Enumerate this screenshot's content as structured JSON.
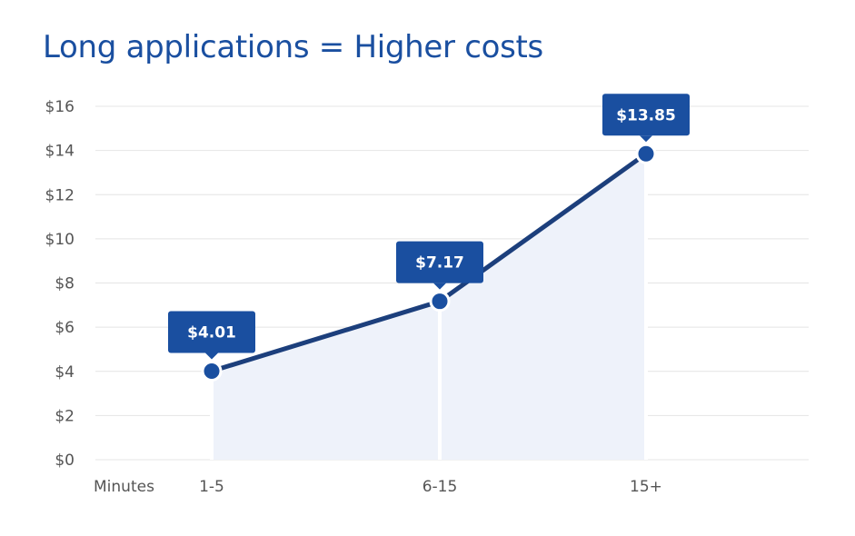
{
  "colors": {
    "title": "#1a4fa0",
    "line": "#1c3f7c",
    "marker": "#1a4fa0",
    "area": "#eef2fa",
    "callout": "#1a4fa0",
    "grid": "#e4e4e4"
  },
  "chart_data": {
    "type": "line",
    "title": "Long applications = Higher costs",
    "xlabel": "Minutes",
    "ylabel": "",
    "categories": [
      "1-5",
      "6-15",
      "15+"
    ],
    "values": [
      4.01,
      7.17,
      13.85
    ],
    "data_labels": [
      "$4.01",
      "$7.17",
      "$13.85"
    ],
    "ylim": [
      0,
      16
    ],
    "y_ticks": [
      {
        "value": 0,
        "label": "$0"
      },
      {
        "value": 2,
        "label": "$2"
      },
      {
        "value": 4,
        "label": "$4"
      },
      {
        "value": 6,
        "label": "$6"
      },
      {
        "value": 8,
        "label": "$8"
      },
      {
        "value": 10,
        "label": "$10"
      },
      {
        "value": 12,
        "label": "$12"
      },
      {
        "value": 14,
        "label": "$14"
      },
      {
        "value": 16,
        "label": "$16"
      }
    ],
    "grid": true,
    "area_fill": true
  }
}
